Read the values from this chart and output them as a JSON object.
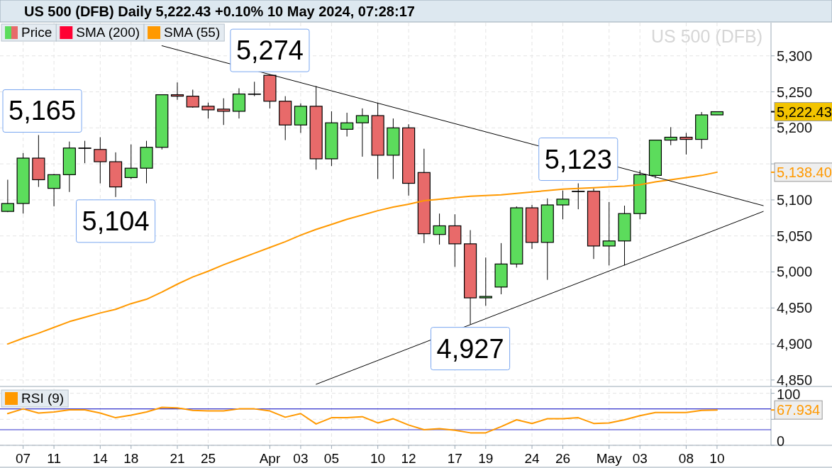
{
  "chart_data": [
    {
      "type": "candlestick",
      "title": "US 500 (DFB) Daily 5,222.43 +0.10% 10 May 2024, 07:28:17",
      "subtitle": "US 500 (DFB)",
      "categories": [
        null,
        "07",
        null,
        "11",
        null,
        null,
        "14",
        null,
        "18",
        null,
        null,
        "21",
        null,
        "25",
        null,
        null,
        null,
        "Apr",
        null,
        "03",
        null,
        "05",
        null,
        null,
        "10",
        null,
        "12",
        null,
        null,
        "17",
        null,
        "19",
        null,
        null,
        "24",
        null,
        "26",
        null,
        null,
        "May",
        null,
        "03",
        null,
        null,
        "08",
        null,
        "10",
        null,
        null,
        null
      ],
      "ylim": [
        4841,
        5346
      ],
      "yticks": [
        {
          "value": 4850,
          "label": "4,850"
        },
        {
          "value": 4900,
          "label": "4,900"
        },
        {
          "value": 4950,
          "label": "4,950"
        },
        {
          "value": 5000,
          "label": "5,000"
        },
        {
          "value": 5050,
          "label": "5,050"
        },
        {
          "value": 5100,
          "label": "5,100"
        },
        {
          "value": 5150,
          "label": null
        },
        {
          "value": 5200,
          "label": "5,200"
        },
        {
          "value": 5250,
          "label": "5,250"
        },
        {
          "value": 5300,
          "label": "5,300"
        }
      ],
      "tick_labels": "y",
      "grid": true,
      "legend": "top left",
      "series": [
        {
          "name": "Price",
          "ohlc": [
            [
              5084,
              5128,
              5083,
              5095
            ],
            [
              5095,
              5165,
              5081,
              5158
            ],
            [
              5158,
              5190,
              5118,
              5128
            ],
            [
              5116,
              5136,
              5091,
              5135
            ],
            [
              5135,
              5181,
              5111,
              5172
            ],
            [
              5172,
              5182,
              5151,
              5172
            ],
            [
              5170,
              5187,
              5123,
              5153
            ],
            [
              5153,
              5166,
              5104,
              5118
            ],
            [
              5131,
              5177,
              5129,
              5144
            ],
            [
              5144,
              5182,
              5123,
              5173
            ],
            [
              5173,
              5246,
              5170,
              5246
            ],
            [
              5246,
              5263,
              5239,
              5244
            ],
            [
              5244,
              5253,
              5228,
              5229
            ],
            [
              5230,
              5235,
              5213,
              5225
            ],
            [
              5226,
              5241,
              5204,
              5223
            ],
            [
              5223,
              5255,
              5213,
              5247
            ],
            [
              5247,
              5264,
              5244,
              5247
            ],
            [
              5273,
              5274,
              5227,
              5237
            ],
            [
              5237,
              5244,
              5183,
              5204
            ],
            [
              5204,
              5234,
              5193,
              5230
            ],
            [
              5230,
              5258,
              5142,
              5157
            ],
            [
              5157,
              5223,
              5147,
              5207
            ],
            [
              5198,
              5221,
              5188,
              5207
            ],
            [
              5207,
              5227,
              5160,
              5217
            ],
            [
              5217,
              5235,
              5129,
              5162
            ],
            [
              5162,
              5213,
              5129,
              5200
            ],
            [
              5200,
              5205,
              5106,
              5123
            ],
            [
              5138,
              5171,
              5040,
              5053
            ],
            [
              5052,
              5081,
              5038,
              5064
            ],
            [
              5064,
              5080,
              5007,
              5039
            ],
            [
              5039,
              5058,
              4927,
              4964
            ],
            [
              4964,
              5020,
              4953,
              4966
            ],
            [
              4979,
              5040,
              4969,
              5011
            ],
            [
              5011,
              5091,
              5006,
              5089
            ],
            [
              5089,
              5093,
              5032,
              5041
            ],
            [
              5041,
              5102,
              4989,
              5093
            ],
            [
              5093,
              5113,
              5073,
              5101
            ],
            [
              5112,
              5123,
              5087,
              5112
            ],
            [
              5112,
              5116,
              5018,
              5036
            ],
            [
              5036,
              5097,
              5009,
              5043
            ],
            [
              5043,
              5092,
              5009,
              5081
            ],
            [
              5081,
              5141,
              5073,
              5135
            ],
            [
              5134,
              5183,
              5130,
              5183
            ],
            [
              5183,
              5201,
              5176,
              5187
            ],
            [
              5187,
              5193,
              5163,
              5184
            ],
            [
              5184,
              5222,
              5171,
              5218
            ],
            [
              5218,
              5222.43,
              5218,
              5222.43
            ],
            null,
            null,
            null
          ],
          "colors": [
            "#5cdc5c",
            "#5cdc5c",
            "#e86a6a",
            "#5cdc5c",
            "#5cdc5c",
            "#000000",
            "#e86a6a",
            "#e86a6a",
            "#5cdc5c",
            "#5cdc5c",
            "#5cdc5c",
            "#e86a6a",
            "#e86a6a",
            "#e86a6a",
            "#e86a6a",
            "#5cdc5c",
            "#000000",
            "#e86a6a",
            "#e86a6a",
            "#5cdc5c",
            "#e86a6a",
            "#5cdc5c",
            "#5cdc5c",
            "#5cdc5c",
            "#e86a6a",
            "#5cdc5c",
            "#e86a6a",
            "#e86a6a",
            "#5cdc5c",
            "#e86a6a",
            "#e86a6a",
            "#5cdc5c",
            "#5cdc5c",
            "#5cdc5c",
            "#e86a6a",
            "#5cdc5c",
            "#5cdc5c",
            "#000000",
            "#e86a6a",
            "#5cdc5c",
            "#5cdc5c",
            "#5cdc5c",
            "#5cdc5c",
            "#5cdc5c",
            "#e86a6a",
            "#5cdc5c",
            "#5cdc5c",
            null,
            null,
            null
          ]
        },
        {
          "name": "SMA (200)",
          "type": "line",
          "color": "#ff0033",
          "values": [
            null,
            null,
            null,
            null,
            null,
            null,
            null,
            null,
            null,
            null,
            null,
            null,
            null,
            null,
            null,
            null,
            null,
            null,
            null,
            null,
            null,
            null,
            null,
            null,
            null,
            null,
            null,
            null,
            null,
            null,
            null,
            null,
            null,
            null,
            null,
            null,
            null,
            null,
            null,
            null,
            null,
            null,
            null,
            null,
            null,
            null,
            null,
            null,
            null,
            null
          ]
        },
        {
          "name": "SMA (55)",
          "type": "line",
          "color": "#ff9900",
          "values": [
            4900,
            4908,
            4915,
            4923,
            4931,
            4937,
            4943,
            4948,
            4956,
            4962,
            4972,
            4983,
            4993,
            5001,
            5010,
            5018,
            5026,
            5034,
            5042,
            5051,
            5059,
            5066,
            5073,
            5079,
            5085,
            5090,
            5094,
            5099,
            5101,
            5103,
            5105,
            5106,
            5107,
            5109,
            5111,
            5113,
            5115,
            5116,
            5117,
            5118,
            5119,
            5121,
            5125,
            5128,
            5131,
            5134,
            5138.4,
            null,
            null,
            null
          ]
        },
        {
          "type": "line",
          "color": "#000000",
          "values": [
            null,
            null,
            null,
            null,
            null,
            null,
            null,
            null,
            null,
            null,
            5314,
            null,
            null,
            null,
            null,
            null,
            null,
            null,
            null,
            null,
            null,
            null,
            null,
            null,
            null,
            null,
            null,
            null,
            null,
            null,
            null,
            null,
            null,
            null,
            null,
            null,
            null,
            null,
            null,
            null,
            null,
            null,
            null,
            null,
            null,
            null,
            null,
            null,
            null,
            5092
          ]
        },
        {
          "type": "line",
          "color": "#000000",
          "values": [
            null,
            null,
            null,
            null,
            null,
            null,
            null,
            null,
            null,
            null,
            null,
            null,
            null,
            null,
            null,
            null,
            null,
            null,
            null,
            null,
            4844,
            null,
            null,
            null,
            null,
            null,
            null,
            null,
            null,
            null,
            null,
            null,
            null,
            null,
            null,
            null,
            null,
            null,
            null,
            null,
            null,
            null,
            null,
            null,
            null,
            null,
            null,
            null,
            null,
            5084
          ]
        }
      ],
      "annotations": [
        {
          "text": "5,165",
          "x": "07",
          "y": 5165
        },
        {
          "text": "5,104",
          "y": 5104
        },
        {
          "text": "5,274",
          "x": "Apr",
          "y": 5274
        },
        {
          "text": "4,927",
          "y": 4927
        },
        {
          "text": "5,123",
          "y": 5123
        },
        "5,222.43",
        "5,138.40"
      ]
    },
    {
      "type": "line",
      "categories": [
        null,
        "07",
        null,
        "11",
        null,
        null,
        "14",
        null,
        "18",
        null,
        null,
        "21",
        null,
        "25",
        null,
        null,
        null,
        "Apr",
        null,
        "03",
        null,
        "05",
        null,
        null,
        "10",
        null,
        "12",
        null,
        null,
        "17",
        null,
        "19",
        null,
        null,
        "24",
        null,
        "26",
        null,
        null,
        "May",
        null,
        "03",
        null,
        null,
        "08",
        null,
        "10",
        null,
        null,
        null
      ],
      "ylim": [
        0,
        109
      ],
      "yticks": [
        0,
        {
          "value": 50,
          "label": null
        },
        100
      ],
      "grid": true,
      "legend": "top left",
      "ref_lines": [
        {
          "axis": "y",
          "value": 70,
          "color": "#3333cc"
        },
        {
          "axis": "y",
          "value": 30,
          "color": "#3333cc"
        }
      ],
      "series": [
        {
          "name": "RSI (9)",
          "color": "#ff9900",
          "values": [
            61,
            70,
            62,
            64,
            68,
            68,
            62,
            53,
            58,
            64,
            73,
            72,
            67,
            66,
            66,
            70,
            70,
            66,
            54,
            61,
            41,
            53,
            53,
            55,
            43,
            51,
            39,
            30,
            32,
            29,
            24,
            24,
            36,
            49,
            42,
            51,
            51,
            53,
            42,
            43,
            49,
            57,
            63,
            63,
            63,
            67,
            67.934,
            null,
            null,
            null
          ]
        }
      ],
      "annotations": [
        "67.934"
      ]
    }
  ]
}
